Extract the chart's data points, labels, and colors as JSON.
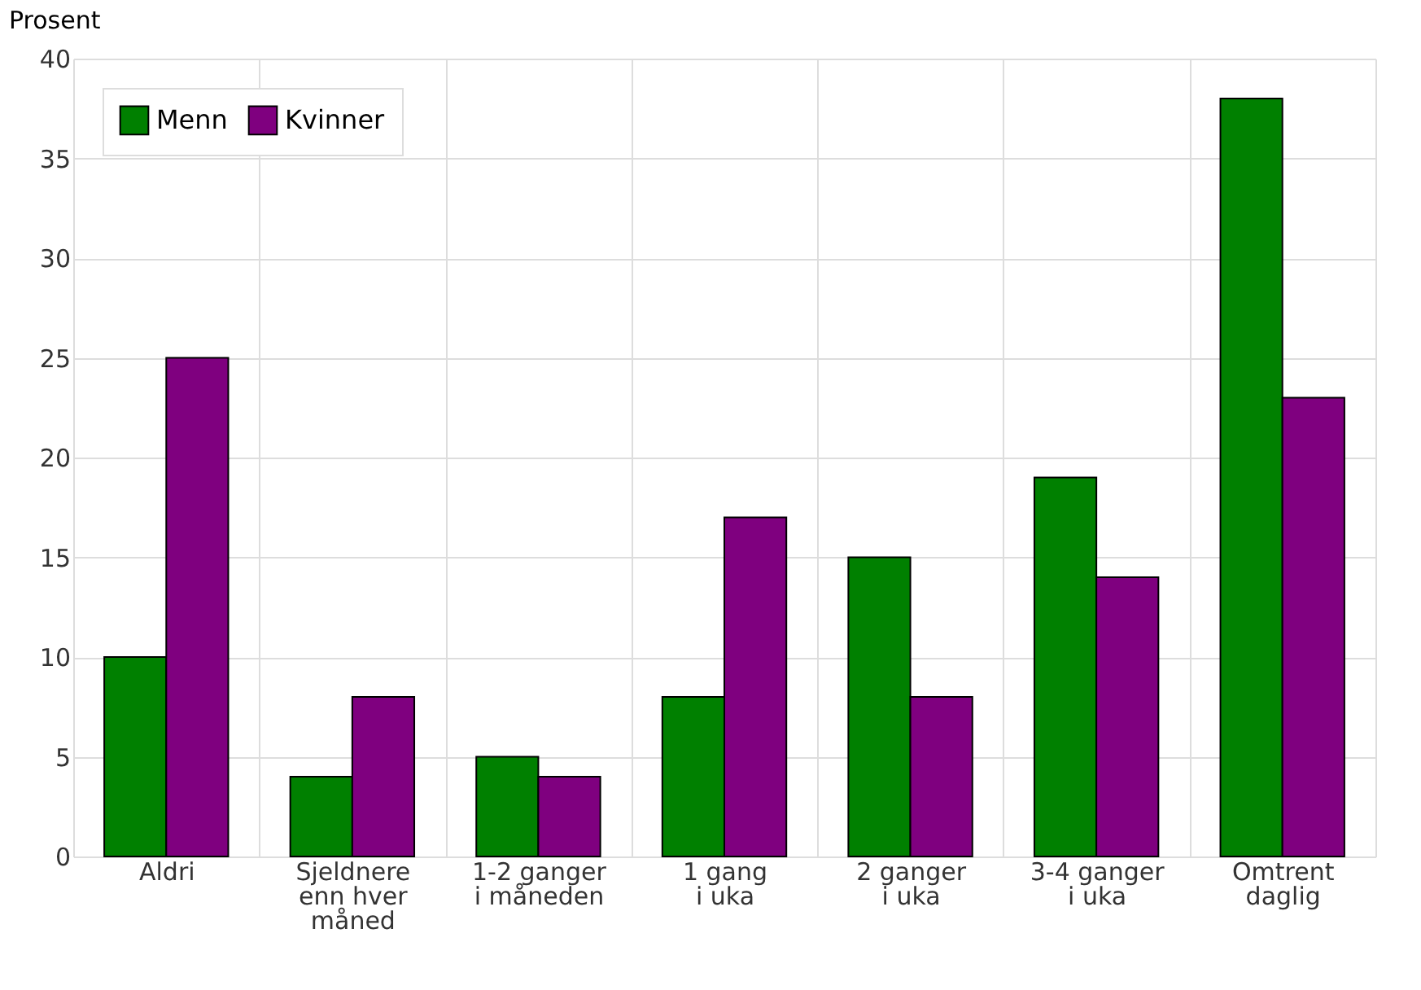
{
  "chart_data": {
    "type": "bar",
    "ylabel": "Prosent",
    "categories": [
      "Aldri",
      "Sjeldnere\nenn hver\nmåned",
      "1-2 ganger\ni måneden",
      "1 gang\ni uka",
      "2 ganger\ni uka",
      "3-4 ganger\ni uka",
      "Omtrent\ndaglig"
    ],
    "series": [
      {
        "name": "Menn",
        "color": "#008000",
        "values": [
          10,
          4,
          5,
          8,
          15,
          19,
          38
        ]
      },
      {
        "name": "Kvinner",
        "color": "#7f007f",
        "values": [
          25,
          8,
          4,
          17,
          8,
          14,
          23
        ]
      }
    ],
    "ylim": [
      0,
      40
    ],
    "yticks": [
      0,
      5,
      10,
      15,
      20,
      25,
      30,
      35,
      40
    ],
    "grid": true,
    "legend": "top left"
  }
}
